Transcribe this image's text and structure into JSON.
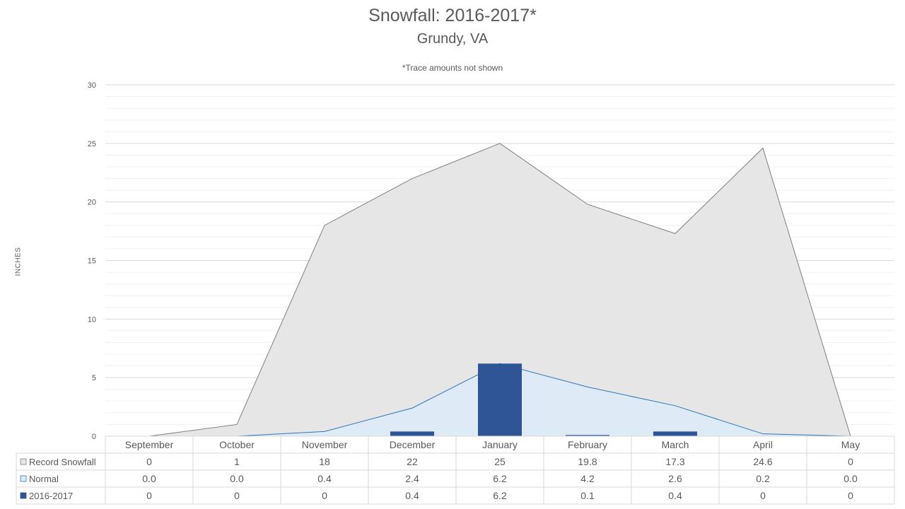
{
  "title": "Snowfall: 2016-2017*",
  "subtitle": "Grundy, VA",
  "note": "*Trace amounts not shown",
  "chart_data": {
    "type": "area",
    "title": "Snowfall: 2016-2017*",
    "subtitle": "Grundy, VA",
    "xlabel": "",
    "ylabel": "INCHES",
    "ylim": [
      0,
      30
    ],
    "yticks": [
      0,
      5,
      10,
      15,
      20,
      25,
      30
    ],
    "grid": true,
    "legend": "data-table",
    "categories": [
      "September",
      "October",
      "November",
      "December",
      "January",
      "February",
      "March",
      "April",
      "May"
    ],
    "series": [
      {
        "name": "Record Snowfall",
        "kind": "area",
        "color": "#e6e6e6",
        "stroke": "#7f7f7f",
        "values": [
          0,
          1,
          18,
          22,
          25,
          19.8,
          17.3,
          24.6,
          0
        ],
        "labels": [
          "0",
          "1",
          "18",
          "22",
          "25",
          "19.8",
          "17.3",
          "24.6",
          "0"
        ]
      },
      {
        "name": "Normal",
        "kind": "area",
        "color": "#deebf7",
        "stroke": "#2e75b6",
        "values": [
          0.0,
          0.0,
          0.4,
          2.4,
          6.2,
          4.2,
          2.6,
          0.2,
          0.0
        ],
        "labels": [
          "0.0",
          "0.0",
          "0.4",
          "2.4",
          "6.2",
          "4.2",
          "2.6",
          "0.2",
          "0.0"
        ]
      },
      {
        "name": "2016-2017",
        "kind": "bar",
        "color": "#2f5597",
        "values": [
          0,
          0,
          0,
          0.4,
          6.2,
          0.1,
          0.4,
          0,
          0
        ],
        "labels": [
          "0",
          "0",
          "0",
          "0.4",
          "6.2",
          "0.1",
          "0.4",
          "0",
          "0"
        ]
      }
    ]
  }
}
